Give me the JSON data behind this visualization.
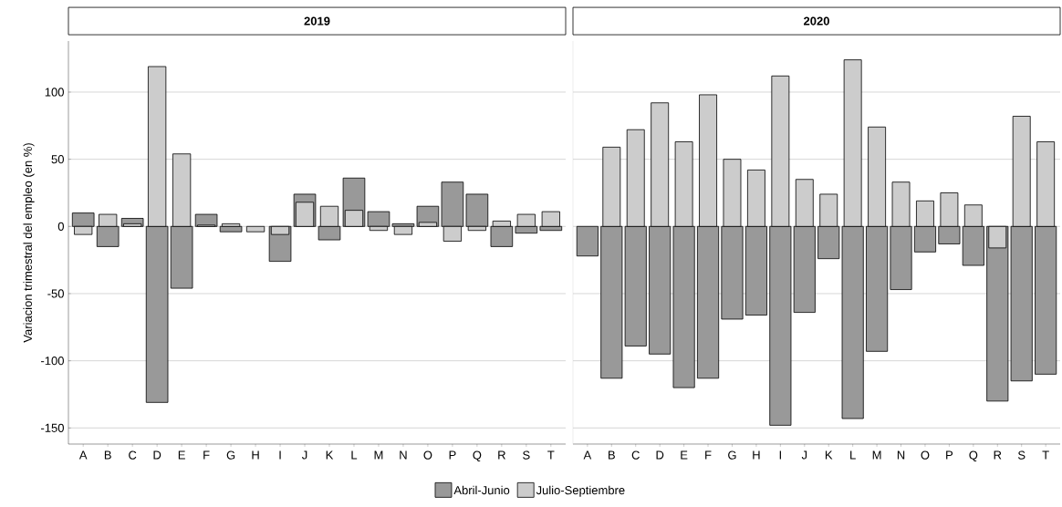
{
  "chart_data": [
    {
      "type": "bar",
      "title": "2019",
      "ylabel": "Variacion trimestral del empleo (en %)",
      "categories": [
        "A",
        "B",
        "C",
        "D",
        "E",
        "F",
        "G",
        "H",
        "I",
        "J",
        "K",
        "L",
        "M",
        "N",
        "O",
        "P",
        "Q",
        "R",
        "S",
        "T"
      ],
      "series": [
        {
          "name": "Abril-Junio",
          "color": "#999999",
          "values": [
            10,
            -15,
            6,
            -131,
            -46,
            9,
            -4,
            null,
            -26,
            24,
            -10,
            36,
            11,
            2,
            15,
            33,
            24,
            -15,
            -5,
            -3
          ]
        },
        {
          "name": "Julio-Septiembre",
          "color": "#cccccc",
          "values": [
            -6,
            9,
            2,
            119,
            54,
            1,
            2,
            -4,
            -6,
            18,
            15,
            12,
            -3,
            -6,
            3,
            -11,
            -3,
            4,
            9,
            11
          ]
        }
      ],
      "ylim": [
        -162,
        138
      ],
      "yticks": [
        -150,
        -100,
        -50,
        0,
        50,
        100
      ],
      "grid": "y",
      "legend": "bottom"
    },
    {
      "type": "bar",
      "title": "2020",
      "categories": [
        "A",
        "B",
        "C",
        "D",
        "E",
        "F",
        "G",
        "H",
        "I",
        "J",
        "K",
        "L",
        "M",
        "N",
        "O",
        "P",
        "Q",
        "R",
        "S",
        "T"
      ],
      "series": [
        {
          "color": "#999999",
          "values": [
            -22,
            -113,
            -89,
            -95,
            -120,
            -113,
            -69,
            -66,
            -148,
            -64,
            -24,
            -143,
            -93,
            -47,
            -19,
            -13,
            -29,
            -130,
            -115,
            -110
          ]
        },
        {
          "color": "#cccccc",
          "values": [
            null,
            59,
            72,
            92,
            63,
            98,
            50,
            42,
            112,
            35,
            24,
            124,
            74,
            33,
            19,
            25,
            16,
            -16,
            82,
            63
          ]
        }
      ],
      "ylim": [
        -162,
        138
      ],
      "yticks": [
        -150,
        -100,
        -50,
        0,
        50,
        100
      ],
      "grid": "y",
      "tick_labels": "x"
    }
  ]
}
